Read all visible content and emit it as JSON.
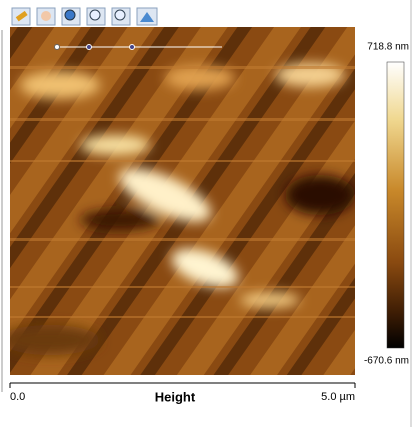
{
  "colorbar": {
    "max_label": "718.8 nm",
    "min_label": "-670.6 nm"
  },
  "x_axis": {
    "start_label": "0.0",
    "end_label": "5.0 µm",
    "title": "Height"
  }
}
